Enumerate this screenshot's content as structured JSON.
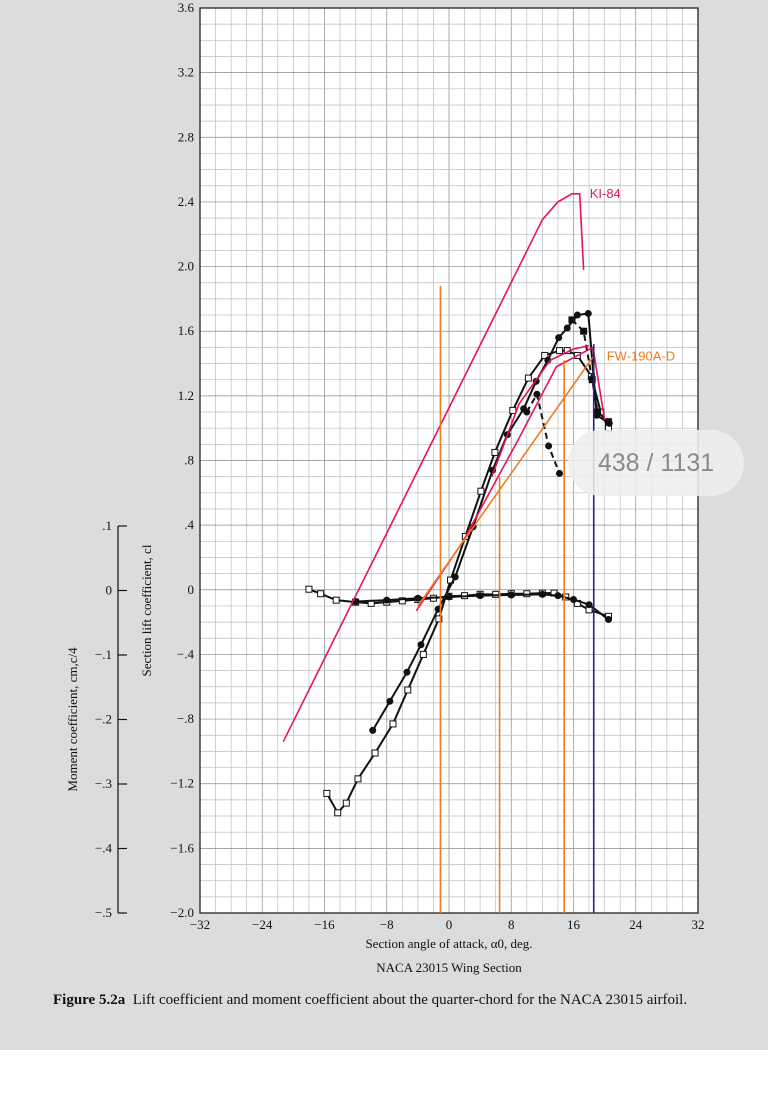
{
  "chart_data": {
    "type": "line",
    "title": "NACA 23015 Wing Section",
    "xlabel": "Section angle of attack, α0, deg.",
    "ylabel": "Section lift coefficient, cl",
    "y2label": "Moment coefficient, cm,c/4",
    "xlim": [
      -32,
      32
    ],
    "ylim": [
      -2.0,
      3.6
    ],
    "y2lim": [
      -0.5,
      0.1
    ],
    "grid": true,
    "xticks": [
      "−32",
      "−24",
      "−16",
      "−8",
      "0",
      "8",
      "16",
      "24",
      "32"
    ],
    "yticks": [
      "−2.0",
      "−1.6",
      "−1.2",
      "−.8",
      "−.4",
      "0",
      ".4",
      ".8",
      "1.2",
      "1.6",
      "2.0",
      "2.4",
      "2.8",
      "3.2",
      "3.6"
    ],
    "y2ticks": [
      "−.5",
      "−.4",
      "−.3",
      "−.2",
      "−.1",
      "0",
      ".1"
    ],
    "series": [
      {
        "marker": "open-square",
        "color": "#111111",
        "x": [
          -15.7,
          -14.3,
          -13.2,
          -11.7,
          -9.5,
          -7.2,
          -5.3,
          -3.3,
          -1.3,
          0.2,
          2.1,
          4.1,
          5.9,
          8.2,
          10.2,
          12.3,
          14.2,
          15.2,
          16.5,
          18.3,
          19.5,
          20.5
        ],
        "y": [
          -1.26,
          -1.38,
          -1.32,
          -1.17,
          -1.01,
          -0.83,
          -0.62,
          -0.4,
          -0.18,
          0.06,
          0.33,
          0.61,
          0.85,
          1.11,
          1.31,
          1.45,
          1.48,
          1.48,
          1.45,
          1.32,
          1.1,
          1.0
        ]
      },
      {
        "marker": "filled-circle",
        "color": "#111111",
        "x": [
          -9.8,
          -7.6,
          -5.4,
          -3.6,
          -1.4,
          0.8,
          3.1,
          5.6,
          7.5,
          9.6,
          11.2,
          12.7,
          14.1,
          15.2,
          16.5,
          17.9,
          19.0,
          20.6
        ],
        "y": [
          -0.87,
          -0.69,
          -0.51,
          -0.34,
          -0.12,
          0.08,
          0.39,
          0.74,
          0.96,
          1.12,
          1.29,
          1.42,
          1.56,
          1.62,
          1.7,
          1.71,
          1.08,
          1.03
        ]
      },
      {
        "marker": "filled-circle",
        "dashed": true,
        "color": "#111111",
        "x": [
          10.0,
          11.3,
          12.8,
          14.2
        ],
        "y": [
          1.1,
          1.21,
          0.89,
          0.72
        ]
      },
      {
        "marker": "filled-square",
        "dashed": true,
        "color": "#111111",
        "x": [
          15.8,
          17.3,
          18.4,
          19.1,
          20.5
        ],
        "y": [
          1.67,
          1.6,
          1.3,
          1.1,
          1.04
        ]
      },
      {
        "marker": "open-square",
        "axis": "moment",
        "color": "#111111",
        "x": [
          -18.0,
          -16.5,
          -14.5,
          -12.0,
          -10.0,
          -8.0,
          -6.0,
          -4.0,
          -2.0,
          0.0,
          2.0,
          4.0,
          6.0,
          8.0,
          10.0,
          12.0,
          13.5,
          15.0,
          16.5,
          18.0,
          20.5
        ],
        "y": [
          0.002,
          -0.005,
          -0.015,
          -0.018,
          -0.02,
          -0.018,
          -0.016,
          -0.014,
          -0.012,
          -0.009,
          -0.008,
          -0.006,
          -0.006,
          -0.005,
          -0.005,
          -0.004,
          -0.004,
          -0.01,
          -0.02,
          -0.03,
          -0.04
        ]
      },
      {
        "marker": "filled-circle",
        "axis": "moment",
        "color": "#111111",
        "x": [
          -12.0,
          -8.0,
          -4.0,
          0.0,
          4.0,
          8.0,
          12.0,
          14.0,
          16.0,
          18.0,
          20.5
        ],
        "y": [
          -0.017,
          -0.015,
          -0.012,
          -0.01,
          -0.008,
          -0.007,
          -0.006,
          -0.008,
          -0.014,
          -0.022,
          -0.045
        ]
      }
    ],
    "overlays": [
      {
        "label": "KI-84",
        "color": "#e6135e",
        "x": [
          -21.3,
          12.0,
          14.0,
          15.8,
          16.8,
          17.3
        ],
        "y": [
          -0.94,
          2.29,
          2.4,
          2.45,
          2.45,
          1.98
        ]
      },
      {
        "label": "FW-190A-D",
        "color": "#e6135e",
        "x": [
          -4.2,
          1.8,
          8.8,
          13.8,
          18.5,
          20.0
        ],
        "y": [
          -0.13,
          0.3,
          0.92,
          1.38,
          1.5,
          1.05
        ]
      },
      {
        "label": "",
        "color": "#e6135e",
        "x": [
          5.5,
          9.0,
          13.0,
          16.0,
          18.0
        ],
        "y": [
          0.7,
          1.15,
          1.42,
          1.49,
          1.51
        ]
      },
      {
        "label": "",
        "color": "#ee7b22",
        "x": [
          -4.0,
          18.5
        ],
        "y": [
          -0.1,
          1.44
        ]
      },
      {
        "label": "",
        "color": "#ee7b22",
        "x": [
          -1.1,
          -1.1
        ],
        "y": [
          -2.0,
          1.88
        ]
      },
      {
        "label": "",
        "color": "#ee7b22",
        "x": [
          6.5,
          6.5
        ],
        "y": [
          -2.0,
          0.7
        ]
      },
      {
        "label": "",
        "color": "#ee7b22",
        "x": [
          14.8,
          14.8
        ],
        "y": [
          -2.0,
          1.42
        ]
      },
      {
        "label": "",
        "color": "#2a1e8a",
        "x": [
          18.6,
          18.6
        ],
        "y": [
          -2.0,
          1.52
        ]
      }
    ]
  },
  "figure_caption": {
    "label": "Figure 5.2a",
    "text": "Lift coefficient and moment coefficient about the quarter-chord for the NACA 23015 airfoil."
  },
  "page_counter": "438 / 1131"
}
